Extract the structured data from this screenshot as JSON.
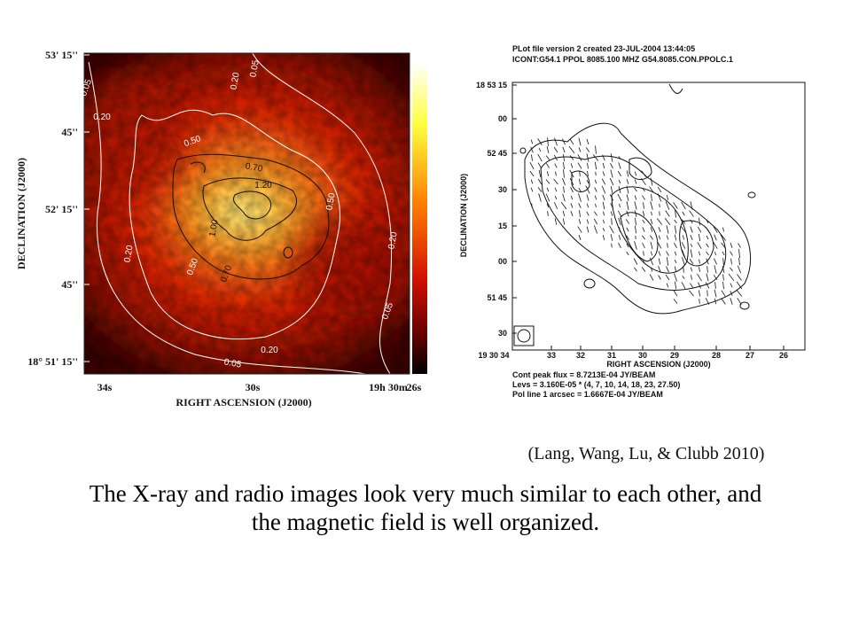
{
  "left_figure": {
    "y_label": "DECLINATION (J2000)",
    "x_label": "RIGHT ASCENSION (J2000)",
    "y_ticks": [
      "53' 15''",
      "45''",
      "52' 15''",
      "45''",
      "18° 51' 15''"
    ],
    "x_ticks": [
      "34s",
      "30s",
      "19h 30m",
      "26s"
    ],
    "contour_labels": [
      "0.05",
      "0.20",
      "0.20",
      "0.05",
      "0.50",
      "0.70",
      "1.20",
      "1.00",
      "0.50",
      "0.20",
      "0.50",
      "0.70",
      "0.20",
      "0.05",
      "0.20",
      "0.05"
    ]
  },
  "right_figure": {
    "header": [
      "PLot file version 2  created 23-JUL-2004 13:44:05",
      "ICONT:G54.1  PPOL  8085.100 MHZ  G54.8085.CON.PPOLC.1"
    ],
    "y_label": "DECLINATION (J2000)",
    "x_label": "RIGHT ASCENSION (J2000)",
    "y_ticks": [
      "18 53 15",
      "00",
      "52 45",
      "30",
      "15",
      "00",
      "51 45",
      "30"
    ],
    "x_ticks": [
      "19 30 34",
      "33",
      "32",
      "31",
      "30",
      "29",
      "28",
      "27",
      "26"
    ],
    "footer": [
      "Cont peak flux =  8.7213E-04 JY/BEAM",
      "Levs = 3.160E-05 * (4, 7, 10, 14, 18, 23, 27.50)",
      "Pol line 1 arcsec = 1.6667E-04 JY/BEAM"
    ]
  },
  "citation": "(Lang, Wang, Lu, & Clubb 2010)",
  "body": [
    "The X-ray and radio images look very much similar to each other, and",
    "the magnetic field is well organized."
  ]
}
